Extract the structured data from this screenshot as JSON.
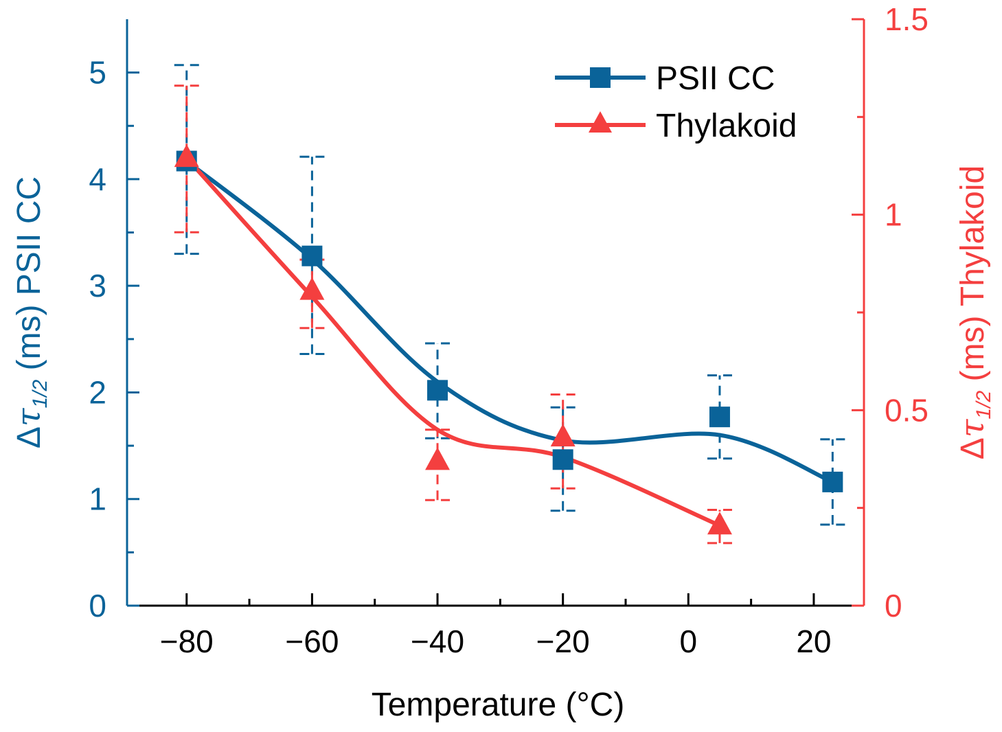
{
  "chart_data": {
    "type": "line",
    "title": "",
    "xlabel": "Temperature (°C)",
    "ylabel_left": {
      "prefix": "Δ",
      "tau": "τ",
      "sub": "1/2",
      "suffix": " (ms) PSII CC"
    },
    "ylabel_right": {
      "prefix": "Δ",
      "tau": "τ",
      "sub": "1/2",
      "suffix": " (ms) Thylakoid"
    },
    "xlim": [
      -89.5,
      28
    ],
    "ylim_left": [
      0,
      5.5
    ],
    "ylim_right": [
      0,
      1.5
    ],
    "x_ticks": [
      {
        "value": -80,
        "label": "−80"
      },
      {
        "value": -60,
        "label": "−60"
      },
      {
        "value": -40,
        "label": "−40"
      },
      {
        "value": -20,
        "label": "−20"
      },
      {
        "value": 0,
        "label": "0"
      },
      {
        "value": 20,
        "label": "20"
      }
    ],
    "x_minor_ticks": [
      -70,
      -50,
      -30,
      -10,
      10
    ],
    "y_left_ticks": [
      {
        "value": 0,
        "label": "0"
      },
      {
        "value": 1,
        "label": "1"
      },
      {
        "value": 2,
        "label": "2"
      },
      {
        "value": 3,
        "label": "3"
      },
      {
        "value": 4,
        "label": "4"
      },
      {
        "value": 5,
        "label": "5"
      }
    ],
    "y_left_minor_ticks": [
      0.5,
      1.5,
      2.5,
      3.5,
      4.5
    ],
    "y_right_ticks": [
      {
        "value": 0,
        "label": "0"
      },
      {
        "value": 0.5,
        "label": "0.5"
      },
      {
        "value": 1,
        "label": "1"
      },
      {
        "value": 1.5,
        "label": "1.5"
      }
    ],
    "y_right_minor_ticks": [
      0.25,
      0.75,
      1.25
    ],
    "series": [
      {
        "name": "PSII CC",
        "axis": "left",
        "color": "#0a6399",
        "marker": "square",
        "x": [
          -80,
          -60,
          -40,
          -20,
          5,
          23
        ],
        "y": [
          4.17,
          3.28,
          2.02,
          1.37,
          1.77,
          1.16
        ],
        "err_low": [
          3.3,
          2.36,
          1.57,
          0.89,
          1.38,
          0.76
        ],
        "err_high": [
          5.07,
          4.21,
          2.46,
          1.86,
          2.16,
          1.56
        ],
        "fit_y": [
          4.17,
          3.25,
          2.1,
          1.55,
          1.6,
          1.16
        ]
      },
      {
        "name": "Thylakoid",
        "axis": "right",
        "color": "#f43f3f",
        "marker": "triangle",
        "x": [
          -80,
          -60,
          -40,
          -20,
          5
        ],
        "y": [
          1.145,
          0.805,
          0.37,
          0.43,
          0.205
        ],
        "err_low": [
          0.955,
          0.71,
          0.27,
          0.3,
          0.16
        ],
        "err_high": [
          1.33,
          0.885,
          0.45,
          0.54,
          0.245
        ],
        "fit_y": [
          1.145,
          0.79,
          0.45,
          0.38,
          0.205
        ]
      }
    ],
    "legend": {
      "position": "top-right",
      "entries": [
        "PSII CC",
        "Thylakoid"
      ]
    }
  }
}
